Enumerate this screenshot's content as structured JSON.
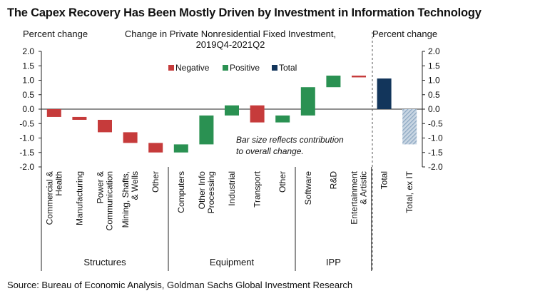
{
  "title": "The Capex Recovery Has Been Mostly Driven by Investment in Information Technology",
  "source": "Source: Bureau of Economic Analysis, Goldman Sachs Global Investment Research",
  "colors": {
    "negative": "#c63b3b",
    "positive": "#2a9152",
    "total": "#12355b",
    "total_ex_it": "#8aa6c1"
  },
  "chart_data": {
    "type": "bar",
    "subtype": "waterfall",
    "title": "Change in Private Nonresidential Fixed Investment, 2019Q4-2021Q2",
    "title_lines": [
      "Change in Private Nonresidential Fixed Investment,",
      "2019Q4-2021Q2"
    ],
    "ylabel_left": "Percent change",
    "ylabel_right": "Percent change",
    "ylim": [
      -2.0,
      2.0
    ],
    "yticks": [
      "2.0",
      "1.5",
      "1.0",
      "0.5",
      "0.0",
      "-0.5",
      "-1.0",
      "-1.5",
      "-2.0"
    ],
    "legend": [
      {
        "label": "Negative",
        "color": "#c63b3b"
      },
      {
        "label": "Positive",
        "color": "#2a9152"
      },
      {
        "label": "Total",
        "color": "#12355b"
      }
    ],
    "legend_position": "top-center",
    "annotation": [
      "Bar size reflects contribution",
      "to overall change."
    ],
    "groups": [
      "Structures",
      "Equipment",
      "IPP"
    ],
    "bars": [
      {
        "label": [
          "Commercial &",
          "Health"
        ],
        "group": "Structures",
        "start": 0.0,
        "end": -0.27,
        "kind": "negative"
      },
      {
        "label": [
          "Manufacturing"
        ],
        "group": "Structures",
        "start": -0.27,
        "end": -0.37,
        "kind": "negative"
      },
      {
        "label": [
          "Power &",
          "Communication"
        ],
        "group": "Structures",
        "start": -0.37,
        "end": -0.8,
        "kind": "negative"
      },
      {
        "label": [
          "Mining, Shafts,",
          "& Wells"
        ],
        "group": "Structures",
        "start": -0.8,
        "end": -1.17,
        "kind": "negative"
      },
      {
        "label": [
          "Other"
        ],
        "group": "Structures",
        "start": -1.17,
        "end": -1.5,
        "kind": "negative"
      },
      {
        "label": [
          "Computers"
        ],
        "group": "Equipment",
        "start": -1.22,
        "end": -1.5,
        "kind": "positive"
      },
      {
        "label": [
          "Other Info",
          "Processing"
        ],
        "group": "Equipment",
        "start": -0.22,
        "end": -1.22,
        "kind": "positive"
      },
      {
        "label": [
          "Industrial"
        ],
        "group": "Equipment",
        "start": 0.13,
        "end": -0.22,
        "kind": "positive"
      },
      {
        "label": [
          "Transport"
        ],
        "group": "Equipment",
        "start": 0.13,
        "end": -0.46,
        "kind": "negative"
      },
      {
        "label": [
          "Other"
        ],
        "group": "Equipment",
        "start": -0.22,
        "end": -0.46,
        "kind": "positive"
      },
      {
        "label": [
          "Software"
        ],
        "group": "IPP",
        "start": 0.76,
        "end": -0.22,
        "kind": "positive"
      },
      {
        "label": [
          "R&D"
        ],
        "group": "IPP",
        "start": 1.16,
        "end": 0.76,
        "kind": "positive"
      },
      {
        "label": [
          "Entertainment",
          "& Artistic"
        ],
        "group": "IPP",
        "start": 1.16,
        "end": 1.1,
        "kind": "negative"
      },
      {
        "label": [
          "Total"
        ],
        "group": "",
        "start": 0.0,
        "end": 1.06,
        "kind": "total"
      },
      {
        "label": [
          "Total, ex IT"
        ],
        "group": "",
        "start": 0.0,
        "end": -1.22,
        "kind": "total_ex_it"
      }
    ]
  }
}
